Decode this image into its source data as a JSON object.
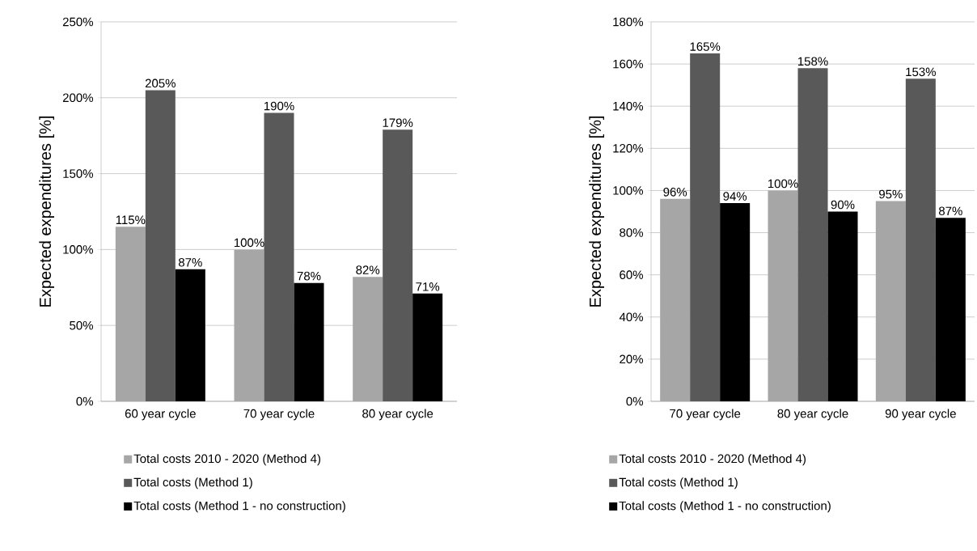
{
  "chart_data": [
    {
      "type": "bar",
      "ylabel": "Expected expenditures [%]",
      "categories": [
        "60 year cycle",
        "70 year cycle",
        "80 year cycle"
      ],
      "series": [
        {
          "name": "Total costs 2010 - 2020 (Method 4)",
          "color": "#a6a6a6",
          "values": [
            115,
            100,
            82
          ],
          "value_labels": [
            "115%",
            "100%",
            "82%"
          ]
        },
        {
          "name": "Total costs (Method 1)",
          "color": "#595959",
          "values": [
            205,
            190,
            179
          ],
          "value_labels": [
            "205%",
            "190%",
            "179%"
          ]
        },
        {
          "name": "Total costs (Method 1 - no construction)",
          "color": "#000000",
          "values": [
            87,
            78,
            71
          ],
          "value_labels": [
            "87%",
            "78%",
            "71%"
          ]
        }
      ],
      "ylim": [
        0,
        250
      ],
      "yticks": [
        {
          "value": 0,
          "label": "0%"
        },
        {
          "value": 50,
          "label": "50%"
        },
        {
          "value": 100,
          "label": "100%"
        },
        {
          "value": 150,
          "label": "150%"
        },
        {
          "value": 200,
          "label": "200%"
        },
        {
          "value": 250,
          "label": "250%"
        }
      ],
      "grid": "y",
      "legend": "bottom"
    },
    {
      "type": "bar",
      "ylabel": "Expected expenditures [%]",
      "categories": [
        "70 year cycle",
        "80 year cycle",
        "90 year cycle"
      ],
      "series": [
        {
          "name": "Total costs 2010 - 2020 (Method 4)",
          "color": "#a6a6a6",
          "values": [
            96,
            100,
            95
          ],
          "value_labels": [
            "96%",
            "100%",
            "95%"
          ]
        },
        {
          "name": "Total costs (Method 1)",
          "color": "#595959",
          "values": [
            165,
            158,
            153
          ],
          "value_labels": [
            "165%",
            "158%",
            "153%"
          ]
        },
        {
          "name": "Total costs (Method 1 - no construction)",
          "color": "#000000",
          "values": [
            94,
            90,
            87
          ],
          "value_labels": [
            "94%",
            "90%",
            "87%"
          ]
        }
      ],
      "ylim": [
        0,
        180
      ],
      "yticks": [
        {
          "value": 0,
          "label": "0%"
        },
        {
          "value": 20,
          "label": "20%"
        },
        {
          "value": 40,
          "label": "40%"
        },
        {
          "value": 60,
          "label": "60%"
        },
        {
          "value": 80,
          "label": "80%"
        },
        {
          "value": 100,
          "label": "100%"
        },
        {
          "value": 120,
          "label": "120%"
        },
        {
          "value": 140,
          "label": "140%"
        },
        {
          "value": 160,
          "label": "160%"
        },
        {
          "value": 180,
          "label": "180%"
        }
      ],
      "grid": "y",
      "legend": "bottom"
    }
  ]
}
